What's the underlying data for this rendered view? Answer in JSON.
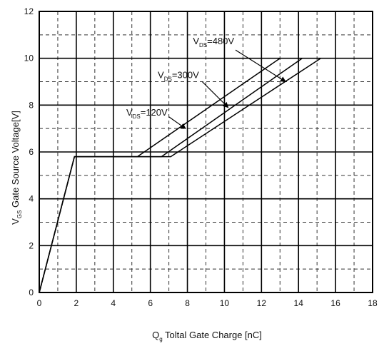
{
  "chart_data": {
    "type": "line",
    "title": "",
    "xlabel": {
      "main": "Q",
      "sub": "g",
      "rest": " Toltal Gate Charge [nC]"
    },
    "ylabel": {
      "main": "V",
      "sub": "GS",
      "rest": " Gate Source Voltage[V]"
    },
    "xlim": [
      0,
      18
    ],
    "ylim": [
      0,
      12
    ],
    "xticks": [
      "0",
      "2",
      "4",
      "6",
      "8",
      "10",
      "12",
      "14",
      "16",
      "18"
    ],
    "yticks": [
      "0",
      "2",
      "4",
      "6",
      "8",
      "10",
      "12"
    ],
    "grid": {
      "major": true,
      "minor_dashed": true
    },
    "series": [
      {
        "name_main": "V",
        "name_sub": "DS",
        "name_rest": "=120V",
        "x": [
          0,
          1.9,
          5.3,
          13.0
        ],
        "y": [
          0,
          5.8,
          5.8,
          10
        ]
      },
      {
        "name_main": "V",
        "name_sub": "DS",
        "name_rest": "=300V",
        "x": [
          0,
          1.9,
          6.6,
          14.2
        ],
        "y": [
          0,
          5.8,
          5.8,
          10
        ]
      },
      {
        "name_main": "V",
        "name_sub": "DS",
        "name_rest": "=480V",
        "x": [
          0,
          1.9,
          7.1,
          15.2
        ],
        "y": [
          0,
          5.8,
          5.8,
          10
        ]
      }
    ]
  }
}
